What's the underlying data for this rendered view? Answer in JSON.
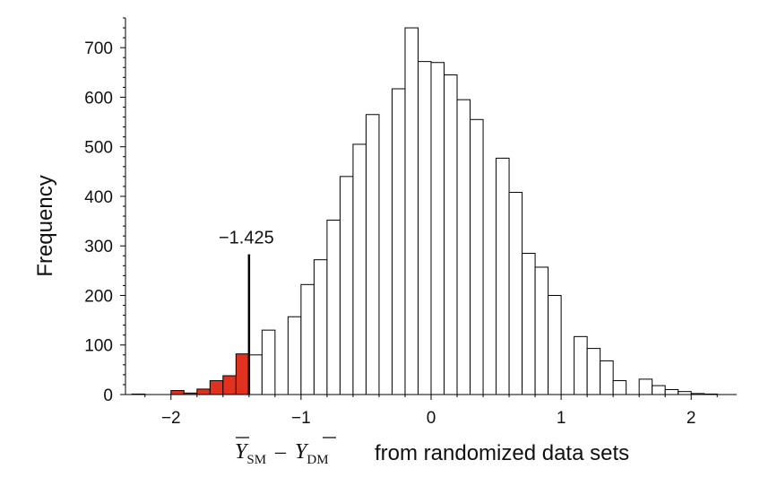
{
  "chart_data": {
    "type": "bar",
    "subtype": "histogram",
    "title": "",
    "ylabel": "Frequency",
    "xlabel": {
      "var1": "Y",
      "sub1": "SM",
      "operator": "–",
      "var2": "Y",
      "sub2": "DM",
      "suffix": "from randomized data sets"
    },
    "xlim": [
      -2.35,
      2.35
    ],
    "ylim": [
      0,
      760
    ],
    "xticks": [
      -2,
      -1,
      0,
      1,
      2
    ],
    "xtick_labels": [
      "−2",
      "−1",
      "0",
      "1",
      "2"
    ],
    "yticks": [
      0,
      100,
      200,
      300,
      400,
      500,
      600,
      700
    ],
    "ytick_labels": [
      "0",
      "100",
      "200",
      "300",
      "400",
      "500",
      "600",
      "700"
    ],
    "bin_width": 0.1,
    "bin_starts": [
      -2.3,
      -2.2,
      -2.1,
      -2.0,
      -1.9,
      -1.8,
      -1.7,
      -1.6,
      -1.5,
      -1.4,
      -1.3,
      -1.2,
      -1.1,
      -1.0,
      -0.9,
      -0.8,
      -0.7,
      -0.6,
      -0.5,
      -0.4,
      -0.3,
      -0.2,
      -0.1,
      0.0,
      0.1,
      0.2,
      0.3,
      0.4,
      0.5,
      0.6,
      0.7,
      0.8,
      0.9,
      1.0,
      1.1,
      1.2,
      1.3,
      1.4,
      1.5,
      1.6,
      1.7,
      1.8,
      1.9,
      2.0,
      2.1
    ],
    "values": [
      1,
      0,
      0,
      8,
      3,
      11,
      28,
      38,
      82,
      80,
      130,
      0,
      157,
      222,
      272,
      352,
      440,
      505,
      565,
      0,
      617,
      740,
      672,
      670,
      645,
      595,
      555,
      0,
      477,
      408,
      285,
      257,
      200,
      0,
      117,
      93,
      68,
      28,
      0,
      31,
      18,
      10,
      6,
      2,
      1
    ],
    "highlighted_below": -1.425,
    "highlight_color": "#e0321e",
    "bar_color": "#ffffff",
    "edge_color": "#000000",
    "vline": {
      "x": -1.4,
      "height": 283,
      "label": "−1.425"
    }
  }
}
